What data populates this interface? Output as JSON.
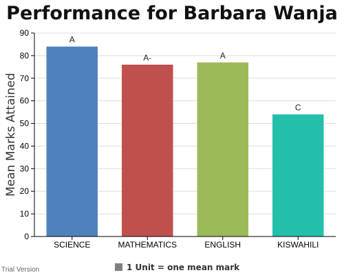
{
  "chart_data": {
    "type": "bar",
    "title": "Performance for Barbara Wanja",
    "xlabel": "",
    "ylabel": "Mean Marks Attained",
    "ylim": [
      0,
      90
    ],
    "yticks": [
      0,
      10,
      20,
      30,
      40,
      50,
      60,
      70,
      80,
      90
    ],
    "grid": true,
    "categories": [
      "SCIENCE",
      "MATHEMATICS",
      "ENGLISH",
      "KISWAHILI"
    ],
    "values": [
      84,
      76,
      77,
      54
    ],
    "data_labels": [
      "A",
      "A-",
      "A",
      "C"
    ],
    "colors": [
      "#4f81bd",
      "#c0504d",
      "#9bbb59",
      "#23bfaa"
    ],
    "legend": {
      "text": "1 Unit = one mean mark",
      "color": "#808080",
      "position": "bottom"
    }
  },
  "watermark": "Trial Version"
}
